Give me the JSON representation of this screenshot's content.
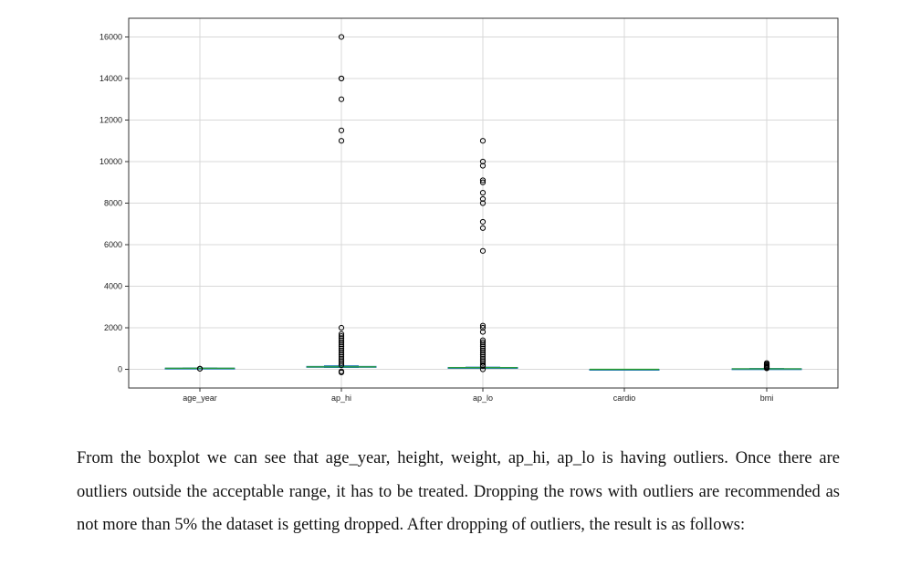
{
  "chart_data": {
    "type": "box",
    "title": "",
    "xlabel": "",
    "ylabel": "",
    "ylim": [
      -900,
      16900
    ],
    "yticks": [
      0,
      2000,
      4000,
      6000,
      8000,
      10000,
      12000,
      14000,
      16000
    ],
    "grid": true,
    "categories": [
      "age_year",
      "ap_hi",
      "ap_lo",
      "cardio",
      "bmi"
    ],
    "boxes": [
      {
        "category": "age_year",
        "whisker_low": 39,
        "q1": 48,
        "median": 54,
        "q3": 58,
        "whisker_high": 65,
        "outliers": [
          30,
          29
        ]
      },
      {
        "category": "ap_hi",
        "whisker_low": 90,
        "q1": 120,
        "median": 120,
        "q3": 140,
        "whisker_high": 170,
        "outliers": [
          16000,
          14000,
          14000,
          13000,
          11500,
          11000,
          2000,
          1700,
          1600,
          1500,
          1400,
          1300,
          1200,
          1100,
          1000,
          900,
          800,
          700,
          600,
          500,
          400,
          300,
          200,
          -100,
          -150
        ]
      },
      {
        "category": "ap_lo",
        "whisker_low": 65,
        "q1": 80,
        "median": 80,
        "q3": 90,
        "whisker_high": 105,
        "outliers": [
          11000,
          10000,
          9800,
          9100,
          9000,
          8500,
          8200,
          8000,
          7100,
          6800,
          5700,
          2100,
          2000,
          1800,
          1400,
          1300,
          1200,
          1100,
          1000,
          900,
          800,
          700,
          600,
          500,
          400,
          300,
          200,
          150,
          0
        ]
      },
      {
        "category": "cardio",
        "whisker_low": 0,
        "q1": 0,
        "median": 0,
        "q3": 1,
        "whisker_high": 1,
        "outliers": []
      },
      {
        "category": "bmi",
        "whisker_low": 15,
        "q1": 24,
        "median": 26,
        "q3": 30,
        "whisker_high": 40,
        "outliers": [
          300,
          250,
          200,
          150,
          120,
          100,
          80,
          60,
          50
        ]
      }
    ],
    "colors": {
      "box": "#1f77b4",
      "median": "#2ca02c",
      "outlier": "#000000",
      "grid": "#d8d8d8",
      "axis": "#333333"
    }
  },
  "paragraph": "From the boxplot we can see that age_year, height, weight, ap_hi, ap_lo is having outliers. Once there are outliers outside the acceptable range, it has to be treated. Dropping the rows with outliers are recommended as not more than 5% the dataset is getting dropped. After dropping of outliers, the result is as follows:"
}
